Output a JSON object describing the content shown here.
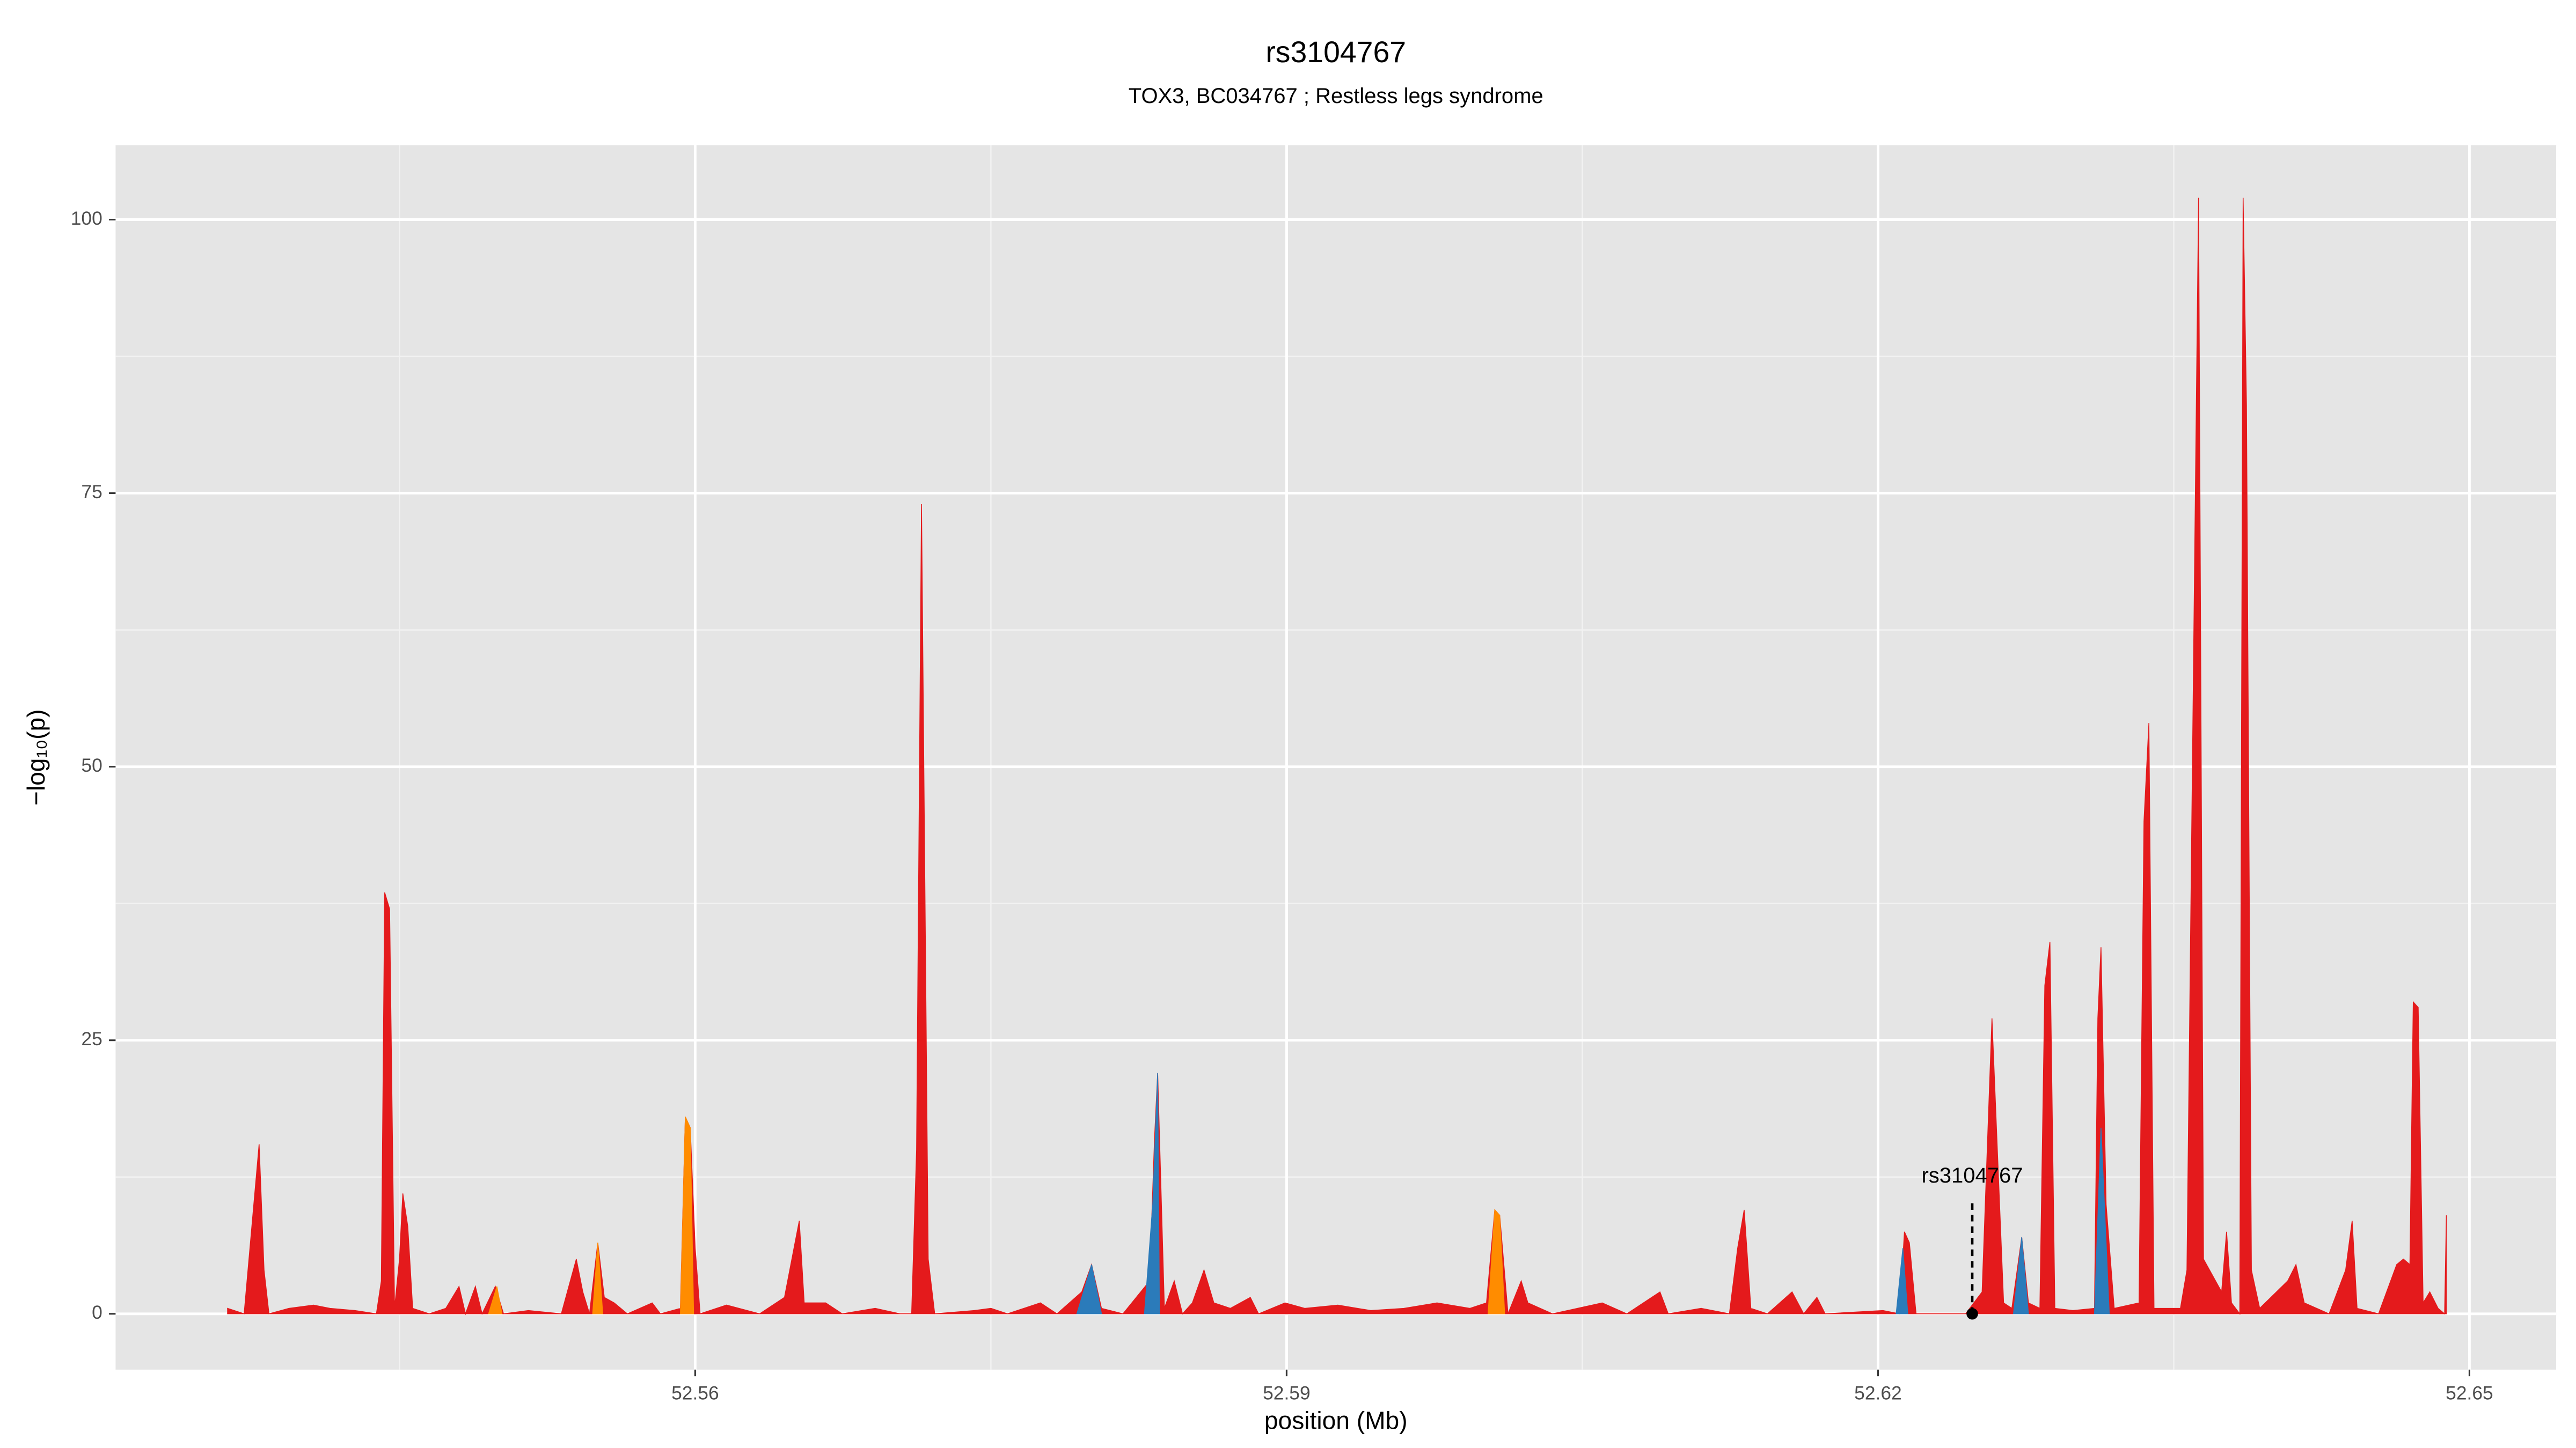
{
  "chart_data": {
    "type": "area",
    "title": "rs3104767",
    "subtitle": "TOX3, BC034767 ; Restless legs syndrome",
    "x_label": "position (Mb)",
    "y_label": "−log₁₀(p)",
    "xlim": [
      52.5306,
      52.6544
    ],
    "ylim": [
      -5.1,
      106.8
    ],
    "xticks": [
      52.56,
      52.59,
      52.62,
      52.65
    ],
    "yticks": [
      0,
      25,
      50,
      75,
      100
    ],
    "grid": true,
    "series": [
      {
        "color": "#e41a1c",
        "x": [
          52.53628,
          52.53712,
          52.53771,
          52.53788,
          52.53813,
          52.53838,
          52.53939,
          52.54064,
          52.54148,
          52.54274,
          52.54383,
          52.54408,
          52.54425,
          52.5445,
          52.54475,
          52.545,
          52.54517,
          52.54542,
          52.54567,
          52.54651,
          52.54735,
          52.54802,
          52.54835,
          52.54885,
          52.54919,
          52.54986,
          52.55028,
          52.55154,
          52.55321,
          52.55397,
          52.5543,
          52.55464,
          52.55506,
          52.55539,
          52.55589,
          52.55656,
          52.55782,
          52.55824,
          52.55925,
          52.5595,
          52.55975,
          52.56,
          52.56025,
          52.56159,
          52.56327,
          52.56453,
          52.56528,
          52.56553,
          52.56662,
          52.56746,
          52.56913,
          52.57039,
          52.57098,
          52.57123,
          52.57148,
          52.57182,
          52.57215,
          52.57416,
          52.575,
          52.57584,
          52.57751,
          52.57835,
          52.57961,
          52.58011,
          52.58061,
          52.5817,
          52.58305,
          52.5833,
          52.58346,
          52.5838,
          52.5843,
          52.58472,
          52.58522,
          52.58581,
          52.58631,
          52.58715,
          52.58816,
          52.58858,
          52.58992,
          52.59092,
          52.5926,
          52.59427,
          52.59595,
          52.59763,
          52.5993,
          52.60014,
          52.60056,
          52.60081,
          52.60123,
          52.6019,
          52.60224,
          52.60349,
          52.60601,
          52.60726,
          52.60894,
          52.60936,
          52.61103,
          52.61246,
          52.61288,
          52.61321,
          52.61355,
          52.61439,
          52.61564,
          52.61623,
          52.6169,
          52.61732,
          52.62025,
          52.62109,
          52.62134,
          52.62159,
          52.62193,
          52.62444,
          52.62528,
          52.62578,
          52.62612,
          52.62637,
          52.62679,
          52.62729,
          52.62763,
          52.62821,
          52.62846,
          52.62872,
          52.62897,
          52.62989,
          52.63098,
          52.63115,
          52.63131,
          52.63157,
          52.63198,
          52.63324,
          52.63349,
          52.63374,
          52.634,
          52.63534,
          52.63567,
          52.63626,
          52.63651,
          52.63743,
          52.63768,
          52.63793,
          52.63835,
          52.63852,
          52.63869,
          52.63894,
          52.63936,
          52.64078,
          52.6412,
          52.64162,
          52.64288,
          52.64372,
          52.64405,
          52.6443,
          52.64539,
          52.64631,
          52.64665,
          52.64698,
          52.64715,
          52.6474,
          52.64765,
          52.64799,
          52.64841,
          52.64874,
          52.64883
        ],
        "values": [
          0.5,
          0,
          12,
          15.5,
          4,
          0,
          0.5,
          0.8,
          0.5,
          0.3,
          0,
          3,
          38.5,
          37,
          0.5,
          5,
          11,
          8,
          0.5,
          0,
          0.5,
          2.5,
          0,
          2.5,
          0,
          2.5,
          0,
          0.3,
          0,
          5,
          2,
          0,
          6.5,
          1.5,
          1,
          0,
          1,
          0,
          0.5,
          18,
          17,
          6,
          0,
          0.8,
          0,
          1.5,
          8.5,
          1,
          1,
          0,
          0.5,
          0,
          0,
          15,
          74,
          5,
          0,
          0.3,
          0.5,
          0,
          1,
          0,
          2,
          4.5,
          0.5,
          0,
          3,
          16,
          22,
          0.5,
          3,
          0,
          1,
          4,
          1,
          0.5,
          1.5,
          0,
          1,
          0.5,
          0.8,
          0.3,
          0.5,
          1,
          0.5,
          1,
          9.5,
          9,
          0,
          3,
          1,
          0,
          1,
          0,
          2,
          0,
          0.5,
          0,
          6,
          9.5,
          0.5,
          0,
          2,
          0,
          1.5,
          0,
          0.3,
          0,
          7.5,
          6.5,
          0,
          0,
          2,
          27,
          12,
          1,
          0.5,
          7,
          1,
          0.5,
          30,
          34,
          0.5,
          0.3,
          0.5,
          27,
          33.5,
          10,
          0.5,
          1,
          45,
          54,
          0.5,
          0.5,
          4,
          102,
          5,
          2,
          7.5,
          1,
          0,
          102,
          83,
          4,
          0.5,
          3,
          4.5,
          1,
          0,
          4,
          8.5,
          0.5,
          0,
          4.5,
          5,
          4.5,
          28.5,
          28,
          1,
          2,
          0.5,
          0,
          9
        ]
      },
      {
        "color": "#2b7bba",
        "x": [
          52.57936,
          52.58011,
          52.58061,
          52.5817,
          52.58279,
          52.58321,
          52.58346,
          52.58355,
          52.6,
          52.62092,
          52.62126,
          52.62151,
          52.624,
          52.62687,
          52.62729,
          52.62763,
          52.63,
          52.63098,
          52.63131,
          52.63173
        ],
        "values": [
          0,
          4.5,
          0,
          null,
          0,
          10,
          22,
          0,
          null,
          0,
          6,
          0,
          null,
          0,
          7,
          0,
          null,
          0,
          17,
          0
        ]
      },
      {
        "color": "#ff8c00",
        "x": [
          52.54952,
          52.54994,
          52.5502,
          52.552,
          52.5548,
          52.55506,
          52.55531,
          52.557,
          52.55925,
          52.5595,
          52.55975,
          52.55992,
          52.58,
          52.60022,
          52.60056,
          52.60081,
          52.60106
        ],
        "values": [
          0,
          2.5,
          0,
          null,
          0,
          6.5,
          0,
          null,
          0,
          18,
          17,
          0,
          null,
          0,
          9.5,
          9,
          0
        ]
      }
    ],
    "annotation": {
      "text": "rs3104767",
      "x": 52.62478,
      "y": 0
    }
  }
}
